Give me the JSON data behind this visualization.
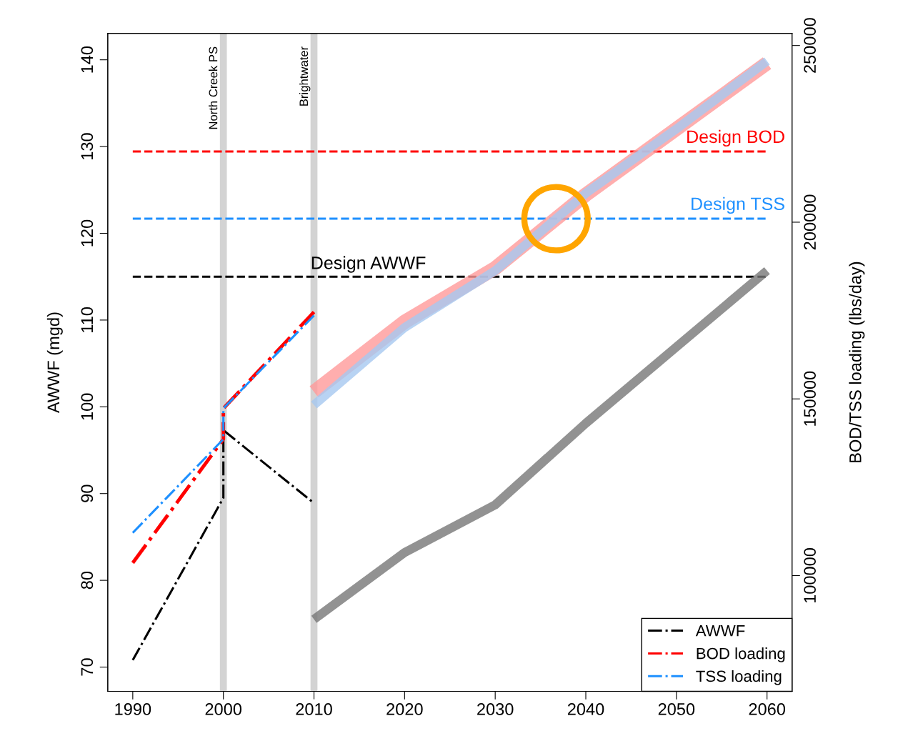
{
  "chart_data": {
    "type": "line",
    "xlabel": null,
    "ylabel": "AWWF (mgd)",
    "y2label": "BOD/TSS loading (lbs/day)",
    "xlim": [
      1987.24,
      2062.76
    ],
    "xticks": [
      1990,
      2000,
      2010,
      2020,
      2030,
      2040,
      2050,
      2060
    ],
    "ylim": [
      67.2,
      143.05
    ],
    "yticks": [
      70,
      80,
      90,
      100,
      110,
      120,
      130,
      140
    ],
    "y2lim": [
      67246,
      253437
    ],
    "y2ticks": [
      100000,
      150000,
      200000,
      250000
    ],
    "grid": false,
    "legend": "bottom right",
    "marker": "none",
    "series": [
      {
        "name": "AWWF",
        "color": "#000000",
        "line_style": "dashdot",
        "x": [
          1990,
          2000,
          2000,
          2010
        ],
        "values": [
          70.8,
          89.5,
          97.3,
          88.9
        ]
      },
      {
        "name": "BOD loading",
        "color": "#ff0000",
        "line_style": "dashdot",
        "axis": "y2",
        "x": [
          1990,
          2000,
          2000,
          2010
        ],
        "values": [
          103600,
          138600,
          147300,
          174600
        ]
      },
      {
        "name": "TSS loading",
        "color": "#1e90ff",
        "line_style": "dashdot",
        "axis": "y2",
        "x": [
          1990,
          2000,
          2000,
          2010
        ],
        "values": [
          112100,
          138600,
          147300,
          173600
        ]
      },
      {
        "color": "#777777",
        "line_style": "solid",
        "x": [
          2010,
          2020,
          2030,
          2040,
          2050,
          2060
        ],
        "values": [
          75.5,
          83.2,
          88.7,
          98.1,
          106.9,
          115.7
        ]
      },
      {
        "color": "#ff9a9a",
        "line_style": "solid",
        "axis": "y2",
        "x": [
          2010,
          2020,
          2030,
          2040,
          2050,
          2060
        ],
        "values": [
          152000,
          171800,
          187000,
          207800,
          226400,
          245000
        ]
      },
      {
        "color": "#a6c8f0",
        "line_style": "solid",
        "axis": "y2",
        "x": [
          2010,
          2020,
          2030,
          2040,
          2050,
          2060
        ],
        "values": [
          148300,
          170200,
          186300,
          208200,
          226400,
          245600
        ]
      }
    ],
    "ref_lines": [
      {
        "axis": "x",
        "value": 2000,
        "label": "North Creek PS",
        "color": "#d3d3d3",
        "line_style": "solid"
      },
      {
        "axis": "x",
        "value": 2010,
        "label": "Brightwater",
        "color": "#d3d3d3",
        "line_style": "solid"
      },
      {
        "axis": "y2",
        "value": 220000,
        "label": "Design BOD",
        "color": "#ff0000",
        "line_style": "dashed"
      },
      {
        "axis": "y2",
        "value": 201000,
        "label": "Design TSS",
        "color": "#1e90ff",
        "line_style": "dashed"
      },
      {
        "axis": "y",
        "value": 115,
        "label": "Design AWWF",
        "color": "#000000",
        "line_style": "dashed"
      }
    ]
  }
}
